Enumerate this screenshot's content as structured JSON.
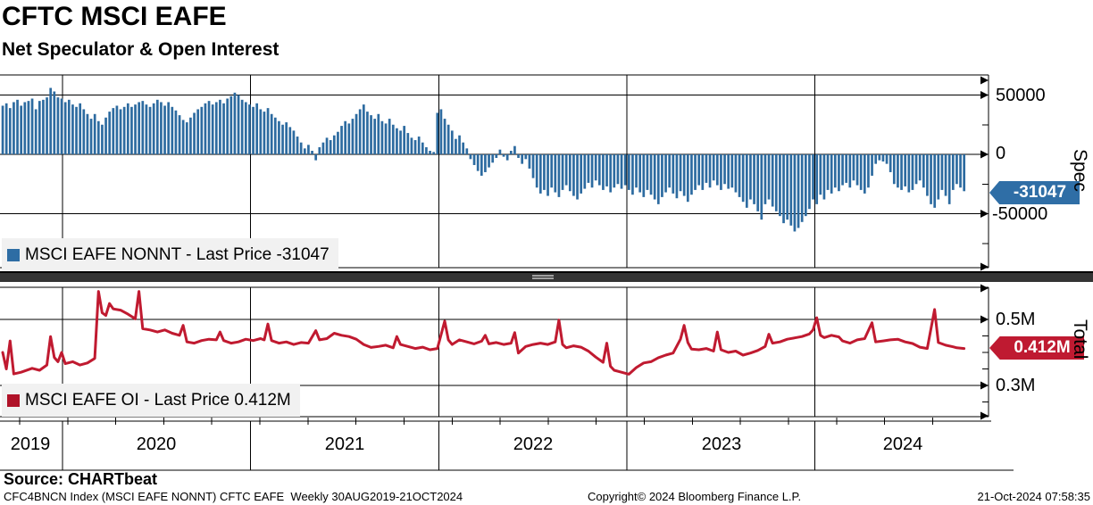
{
  "header": {
    "title": "CFTC MSCI EAFE",
    "subtitle": "Net Speculator & Open Interest"
  },
  "colors": {
    "bar_blue": "#2d6ba0",
    "line_red": "#c01a30",
    "spec_badge_bg": "#2f6ea6",
    "total_badge_bg": "#bf1a31",
    "spec_legend_square": "#2e6da4",
    "total_legend_square": "#b01228",
    "legend_bg": "#f1f1f1",
    "grid": "#000000"
  },
  "spec_panel": {
    "legend_label": "MSCI EAFE NONNT - Last Price -31047",
    "axis_title": "Spec",
    "last_price_label": "-31047",
    "tick_labels": {
      "t50000": "50000",
      "t0": "0",
      "tn50000": "-50000"
    }
  },
  "total_panel": {
    "legend_label": "MSCI EAFE OI - Last Price 0.412M",
    "axis_title": "Total",
    "last_price_label": "0.412M",
    "tick_labels": {
      "t05": "0.5M",
      "t03": "0.3M"
    }
  },
  "xaxis": {
    "years": {
      "y2019": "2019",
      "y2020": "2020",
      "y2021": "2021",
      "y2022": "2022",
      "y2023": "2023",
      "y2024": "2024"
    }
  },
  "footer": {
    "source": "Source: CHARTbeat",
    "meta": "CFC4BNCN Index (MSCI EAFE NONNT) CFTC EAFE  Weekly 30AUG2019-21OCT2024",
    "copyright": "Copyright© 2024 Bloomberg Finance L.P.",
    "timestamp": "21-Oct-2024 07:58:35"
  },
  "chart_data": [
    {
      "type": "bar",
      "name": "MSCI EAFE NONNT - Net Speculator",
      "frequency": "weekly",
      "start": "30AUG2019",
      "end": "21OCT2024",
      "ylabel": "Spec",
      "ylim": [
        -95000,
        70000
      ],
      "gridline_values": [
        50000,
        0,
        -50000
      ],
      "minor_tick_values": [
        25000,
        -25000,
        -75000
      ],
      "legend_position": "bottom-left",
      "last_price": -31047,
      "year_start_weeks": [
        16.2,
        67.3,
        118.4,
        169.5,
        220.5
      ],
      "values": [
        41000,
        43000,
        39000,
        44000,
        46000,
        41000,
        44000,
        45000,
        47000,
        38000,
        45000,
        46000,
        48000,
        56000,
        53000,
        48000,
        47000,
        44000,
        46000,
        42000,
        40000,
        43000,
        38000,
        34000,
        30000,
        34000,
        28000,
        25000,
        31000,
        36000,
        39000,
        41000,
        38000,
        40000,
        43000,
        40000,
        42000,
        44000,
        45000,
        42000,
        40000,
        43000,
        46000,
        44000,
        41000,
        44000,
        40000,
        37000,
        33000,
        29000,
        27000,
        31000,
        35000,
        38000,
        40000,
        43000,
        45000,
        42000,
        44000,
        46000,
        43000,
        47000,
        49000,
        52000,
        50000,
        46000,
        44000,
        42000,
        40000,
        43000,
        38000,
        36000,
        39000,
        34000,
        31000,
        28000,
        25000,
        27000,
        23000,
        20000,
        15000,
        10000,
        5000,
        8000,
        3000,
        -5000,
        6000,
        10000,
        14000,
        12000,
        16000,
        19000,
        24000,
        28000,
        26000,
        30000,
        34000,
        38000,
        42000,
        36000,
        33000,
        30000,
        34000,
        28000,
        26000,
        30000,
        25000,
        22000,
        20000,
        24000,
        18000,
        14000,
        12000,
        15000,
        10000,
        6000,
        3000,
        2000,
        35000,
        38000,
        30000,
        25000,
        20000,
        13000,
        16000,
        10000,
        5000,
        -4000,
        -9000,
        -14000,
        -18000,
        -15000,
        -11000,
        -7000,
        -3000,
        4000,
        -2000,
        -5000,
        3000,
        7000,
        -3000,
        -8000,
        -4000,
        -12000,
        -20000,
        -28000,
        -33000,
        -30000,
        -35000,
        -28000,
        -32000,
        -36000,
        -30000,
        -26000,
        -31000,
        -35000,
        -38000,
        -33000,
        -29000,
        -24000,
        -28000,
        -22000,
        -26000,
        -30000,
        -27000,
        -32000,
        -28000,
        -25000,
        -29000,
        -26000,
        -30000,
        -34000,
        -28000,
        -32000,
        -36000,
        -30000,
        -34000,
        -38000,
        -42000,
        -36000,
        -32000,
        -28000,
        -33000,
        -37000,
        -31000,
        -35000,
        -40000,
        -34000,
        -30000,
        -26000,
        -30000,
        -24000,
        -28000,
        -22000,
        -26000,
        -30000,
        -25000,
        -29000,
        -28000,
        -32000,
        -36000,
        -40000,
        -45000,
        -38000,
        -42000,
        -48000,
        -55000,
        -42000,
        -38000,
        -44000,
        -48000,
        -52000,
        -58000,
        -55000,
        -60000,
        -65000,
        -62000,
        -57000,
        -52000,
        -46000,
        -38000,
        -42000,
        -34000,
        -38000,
        -30000,
        -33000,
        -28000,
        -31000,
        -26000,
        -24000,
        -28000,
        -22000,
        -26000,
        -30000,
        -33000,
        -28000,
        -18000,
        -8000,
        -5000,
        -6000,
        -8000,
        -15000,
        -25000,
        -28000,
        -30000,
        -27000,
        -32000,
        -30000,
        -25000,
        -22000,
        -28000,
        -35000,
        -42000,
        -45000,
        -38000,
        -30000,
        -35000,
        -42000,
        -30000,
        -25000,
        -28000,
        -31047
      ]
    },
    {
      "type": "line",
      "name": "MSCI EAFE OI - Open Interest",
      "frequency": "weekly",
      "start": "30AUG2019",
      "end": "21OCT2024",
      "ylabel": "Total",
      "unit": "millions of contracts",
      "ylim": [
        0.2,
        0.6
      ],
      "gridline_values": [
        0.5,
        0.3
      ],
      "minor_tick_values": [
        0.45,
        0.4,
        0.35,
        0.25
      ],
      "legend_position": "bottom-left",
      "last_price": 0.412,
      "points": [
        [
          0,
          0.4
        ],
        [
          1,
          0.35
        ],
        [
          2,
          0.435
        ],
        [
          3,
          0.335
        ],
        [
          5,
          0.34
        ],
        [
          8,
          0.352
        ],
        [
          10,
          0.346
        ],
        [
          12,
          0.362
        ],
        [
          13,
          0.448
        ],
        [
          14,
          0.385
        ],
        [
          15,
          0.372
        ],
        [
          16,
          0.4
        ],
        [
          17,
          0.366
        ],
        [
          19,
          0.372
        ],
        [
          21,
          0.362
        ],
        [
          23,
          0.368
        ],
        [
          25,
          0.382
        ],
        [
          26,
          0.585
        ],
        [
          27,
          0.52
        ],
        [
          28,
          0.512
        ],
        [
          29,
          0.548
        ],
        [
          30,
          0.532
        ],
        [
          32,
          0.528
        ],
        [
          34,
          0.516
        ],
        [
          36,
          0.502
        ],
        [
          37,
          0.585
        ],
        [
          38,
          0.472
        ],
        [
          40,
          0.468
        ],
        [
          42,
          0.462
        ],
        [
          44,
          0.468
        ],
        [
          46,
          0.458
        ],
        [
          48,
          0.452
        ],
        [
          49,
          0.482
        ],
        [
          50,
          0.432
        ],
        [
          52,
          0.428
        ],
        [
          54,
          0.436
        ],
        [
          56,
          0.44
        ],
        [
          58,
          0.438
        ],
        [
          59,
          0.462
        ],
        [
          60,
          0.436
        ],
        [
          62,
          0.428
        ],
        [
          64,
          0.432
        ],
        [
          66,
          0.44
        ],
        [
          68,
          0.436
        ],
        [
          70,
          0.442
        ],
        [
          71,
          0.438
        ],
        [
          72,
          0.486
        ],
        [
          73,
          0.436
        ],
        [
          75,
          0.428
        ],
        [
          77,
          0.432
        ],
        [
          79,
          0.424
        ],
        [
          81,
          0.43
        ],
        [
          83,
          0.428
        ],
        [
          85,
          0.466
        ],
        [
          86,
          0.438
        ],
        [
          88,
          0.442
        ],
        [
          90,
          0.458
        ],
        [
          92,
          0.452
        ],
        [
          94,
          0.448
        ],
        [
          96,
          0.44
        ],
        [
          98,
          0.424
        ],
        [
          100,
          0.415
        ],
        [
          102,
          0.418
        ],
        [
          104,
          0.422
        ],
        [
          106,
          0.414
        ],
        [
          107,
          0.448
        ],
        [
          108,
          0.424
        ],
        [
          110,
          0.418
        ],
        [
          112,
          0.412
        ],
        [
          114,
          0.416
        ],
        [
          116,
          0.408
        ],
        [
          118,
          0.412
        ],
        [
          120,
          0.495
        ],
        [
          121,
          0.438
        ],
        [
          122,
          0.424
        ],
        [
          124,
          0.438
        ],
        [
          126,
          0.432
        ],
        [
          128,
          0.426
        ],
        [
          130,
          0.434
        ],
        [
          131,
          0.452
        ],
        [
          132,
          0.426
        ],
        [
          134,
          0.43
        ],
        [
          136,
          0.424
        ],
        [
          138,
          0.428
        ],
        [
          139,
          0.46
        ],
        [
          140,
          0.398
        ],
        [
          142,
          0.418
        ],
        [
          144,
          0.424
        ],
        [
          146,
          0.428
        ],
        [
          148,
          0.424
        ],
        [
          150,
          0.432
        ],
        [
          151,
          0.498
        ],
        [
          152,
          0.424
        ],
        [
          153,
          0.414
        ],
        [
          155,
          0.42
        ],
        [
          157,
          0.416
        ],
        [
          159,
          0.404
        ],
        [
          161,
          0.386
        ],
        [
          163,
          0.37
        ],
        [
          164,
          0.428
        ],
        [
          165,
          0.358
        ],
        [
          166,
          0.346
        ],
        [
          168,
          0.34
        ],
        [
          170,
          0.334
        ],
        [
          172,
          0.354
        ],
        [
          174,
          0.368
        ],
        [
          176,
          0.372
        ],
        [
          178,
          0.384
        ],
        [
          180,
          0.392
        ],
        [
          182,
          0.398
        ],
        [
          184,
          0.44
        ],
        [
          185,
          0.482
        ],
        [
          186,
          0.43
        ],
        [
          187,
          0.41
        ],
        [
          189,
          0.408
        ],
        [
          191,
          0.412
        ],
        [
          193,
          0.404
        ],
        [
          194,
          0.462
        ],
        [
          195,
          0.408
        ],
        [
          197,
          0.4
        ],
        [
          199,
          0.404
        ],
        [
          201,
          0.392
        ],
        [
          203,
          0.398
        ],
        [
          205,
          0.406
        ],
        [
          207,
          0.418
        ],
        [
          208,
          0.455
        ],
        [
          209,
          0.428
        ],
        [
          211,
          0.432
        ],
        [
          213,
          0.44
        ],
        [
          215,
          0.444
        ],
        [
          217,
          0.448
        ],
        [
          219,
          0.456
        ],
        [
          220,
          0.468
        ],
        [
          221,
          0.505
        ],
        [
          222,
          0.452
        ],
        [
          223,
          0.445
        ],
        [
          225,
          0.452
        ],
        [
          227,
          0.447
        ],
        [
          228,
          0.435
        ],
        [
          230,
          0.428
        ],
        [
          232,
          0.438
        ],
        [
          234,
          0.442
        ],
        [
          236,
          0.49
        ],
        [
          237,
          0.432
        ],
        [
          239,
          0.435
        ],
        [
          241,
          0.438
        ],
        [
          243,
          0.44
        ],
        [
          245,
          0.432
        ],
        [
          247,
          0.427
        ],
        [
          249,
          0.416
        ],
        [
          251,
          0.412
        ],
        [
          253,
          0.53
        ],
        [
          254,
          0.43
        ],
        [
          256,
          0.422
        ],
        [
          258,
          0.417
        ],
        [
          259,
          0.414
        ],
        [
          261,
          0.412
        ]
      ]
    }
  ]
}
